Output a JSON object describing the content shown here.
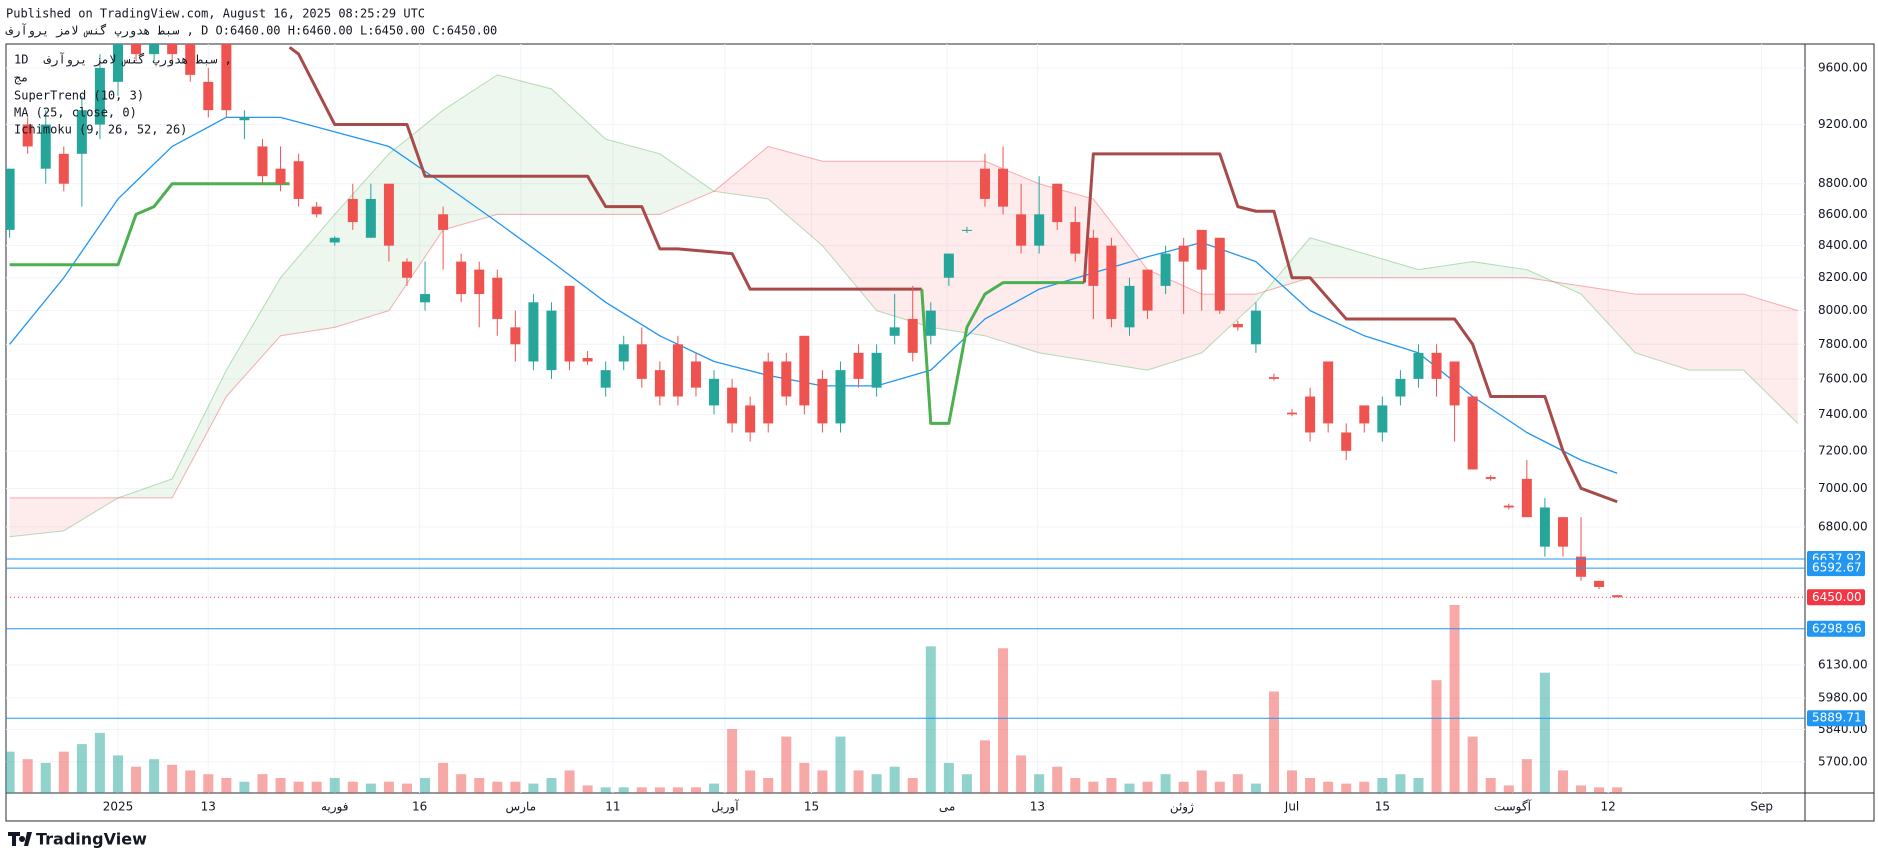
{
  "header": {
    "published": "Published on TradingView.com, August 16, 2025 08:25:29 UTC",
    "symbol_line": "سبط هدورپ گنس لامز یروآرف , D O:6460.00 H:6460.00 L:6450.00 C:6450.00"
  },
  "legend": {
    "interval": "1D",
    "symbol": "سبط هدورپ گنس لامز یروآرف ,",
    "exchange": "مج"
  },
  "footer": {
    "brand": "TradingView"
  },
  "chart_data": {
    "type": "candlestick",
    "xlim": [
      -0.2,
      99.4
    ],
    "xticks": [
      {
        "value": 6,
        "label": "2025"
      },
      {
        "value": 11,
        "label": "13"
      },
      {
        "value": 18,
        "label": "فوریه"
      },
      {
        "value": 22.7,
        "label": "16"
      },
      {
        "value": 28.3,
        "label": "مارس"
      },
      {
        "value": 33.4,
        "label": "11"
      },
      {
        "value": 39.6,
        "label": "آوریل"
      },
      {
        "value": 44.4,
        "label": "15"
      },
      {
        "value": 51.9,
        "label": "می"
      },
      {
        "value": 56.9,
        "label": "13"
      },
      {
        "value": 64.9,
        "label": "ژوئن"
      },
      {
        "value": 71,
        "label": "Jul"
      },
      {
        "value": 76,
        "label": "15"
      },
      {
        "value": 83.2,
        "label": "آگوست"
      },
      {
        "value": 88.5,
        "label": "12"
      },
      {
        "value": 97,
        "label": "Sep"
      }
    ],
    "ylim": [
      5568,
      9774
    ],
    "log": true,
    "grid": true,
    "yticks": [
      {
        "value": 9600,
        "label": "9600.00"
      },
      {
        "value": 9200,
        "label": "9200.00"
      },
      {
        "value": 8800,
        "label": "8800.00"
      },
      {
        "value": 8600,
        "label": "8600.00"
      },
      {
        "value": 8400,
        "label": "8400.00"
      },
      {
        "value": 8200,
        "label": "8200.00"
      },
      {
        "value": 8000,
        "label": "8000.00"
      },
      {
        "value": 7800,
        "label": "7800.00"
      },
      {
        "value": 7600,
        "label": "7600.00"
      },
      {
        "value": 7400,
        "label": "7400.00"
      },
      {
        "value": 7200,
        "label": "7200.00"
      },
      {
        "value": 7000,
        "label": "7000.00"
      },
      {
        "value": 6800,
        "label": "6800.00"
      },
      {
        "value": 6130,
        "label": "6130.00"
      },
      {
        "value": 5980,
        "label": "5980.00"
      },
      {
        "value": 5840,
        "label": "5840.00"
      },
      {
        "value": 5700,
        "label": "5700.00"
      }
    ],
    "up_color": "#26a69a",
    "down_color": "#ef5350",
    "ohlc": [
      [
        8500,
        8900,
        8450,
        8900
      ],
      [
        9200,
        9250,
        9000,
        9050
      ],
      [
        8900,
        9300,
        8800,
        9200
      ],
      [
        9000,
        9050,
        8750,
        8800
      ],
      [
        9000,
        9400,
        8650,
        9300
      ],
      [
        9200,
        9700,
        9100,
        9600
      ],
      [
        9500,
        9850,
        9400,
        9800
      ],
      [
        9800,
        9850,
        9650,
        9700
      ],
      [
        9700,
        9900,
        9650,
        9850
      ],
      [
        9850,
        9900,
        9650,
        9700
      ],
      [
        9800,
        9850,
        9500,
        9550
      ],
      [
        9500,
        9600,
        9250,
        9300
      ],
      [
        9800,
        9850,
        9250,
        9300
      ],
      [
        9230,
        9300,
        9100,
        9250
      ],
      [
        9050,
        9100,
        8800,
        8850
      ],
      [
        8900,
        9050,
        8750,
        8800
      ],
      [
        8950,
        9000,
        8650,
        8700
      ],
      [
        8650,
        8680,
        8580,
        8600
      ],
      [
        8420,
        8460,
        8400,
        8450
      ],
      [
        8700,
        8800,
        8500,
        8550
      ],
      [
        8450,
        8800,
        8450,
        8700
      ],
      [
        8800,
        8800,
        8300,
        8400
      ],
      [
        8300,
        8320,
        8150,
        8200
      ],
      [
        8050,
        8300,
        8000,
        8100
      ],
      [
        8600,
        8650,
        8250,
        8500
      ],
      [
        8300,
        8350,
        8050,
        8100
      ],
      [
        8250,
        8300,
        7900,
        8100
      ],
      [
        8200,
        8250,
        7850,
        7950
      ],
      [
        7900,
        8000,
        7700,
        7800
      ],
      [
        7700,
        8100,
        7650,
        8050
      ],
      [
        7650,
        8050,
        7600,
        8000
      ],
      [
        8150,
        8150,
        7650,
        7700
      ],
      [
        7720,
        7760,
        7680,
        7700
      ],
      [
        7550,
        7700,
        7500,
        7650
      ],
      [
        7700,
        7850,
        7650,
        7800
      ],
      [
        7800,
        7900,
        7550,
        7600
      ],
      [
        7650,
        7700,
        7450,
        7500
      ],
      [
        7800,
        7850,
        7450,
        7500
      ],
      [
        7700,
        7750,
        7500,
        7550
      ],
      [
        7450,
        7650,
        7400,
        7600
      ],
      [
        7550,
        7600,
        7300,
        7350
      ],
      [
        7450,
        7500,
        7250,
        7300
      ],
      [
        7700,
        7750,
        7300,
        7350
      ],
      [
        7700,
        7750,
        7450,
        7500
      ],
      [
        7850,
        7850,
        7400,
        7450
      ],
      [
        7600,
        7650,
        7300,
        7350
      ],
      [
        7350,
        7700,
        7300,
        7650
      ],
      [
        7750,
        7800,
        7550,
        7600
      ],
      [
        7550,
        7800,
        7500,
        7750
      ],
      [
        7850,
        8100,
        7800,
        7900
      ],
      [
        7950,
        8150,
        7700,
        7750
      ],
      [
        7850,
        8050,
        7800,
        8000
      ],
      [
        8200,
        8350,
        8150,
        8350
      ],
      [
        8500,
        8520,
        8480,
        8500
      ],
      [
        8900,
        9000,
        8650,
        8700
      ],
      [
        8900,
        9050,
        8600,
        8650
      ],
      [
        8600,
        8800,
        8350,
        8400
      ],
      [
        8400,
        8850,
        8350,
        8600
      ],
      [
        8800,
        8800,
        8500,
        8550
      ],
      [
        8550,
        8650,
        8300,
        8350
      ],
      [
        8450,
        8500,
        7950,
        8150
      ],
      [
        8400,
        8450,
        7900,
        7950
      ],
      [
        7900,
        8200,
        7850,
        8150
      ],
      [
        8250,
        8250,
        7950,
        8000
      ],
      [
        8150,
        8400,
        8100,
        8350
      ],
      [
        8400,
        8450,
        7980,
        8300
      ],
      [
        8500,
        8500,
        8000,
        8250
      ],
      [
        8450,
        8450,
        7980,
        8000
      ],
      [
        7920,
        7940,
        7880,
        7900
      ],
      [
        7800,
        8050,
        7750,
        8000
      ],
      [
        7610,
        7630,
        7590,
        7600
      ],
      [
        7410,
        7430,
        7390,
        7400
      ],
      [
        7500,
        7550,
        7250,
        7300
      ],
      [
        7700,
        7700,
        7300,
        7350
      ],
      [
        7300,
        7350,
        7150,
        7200
      ],
      [
        7450,
        7450,
        7300,
        7350
      ],
      [
        7300,
        7500,
        7250,
        7450
      ],
      [
        7500,
        7650,
        7450,
        7600
      ],
      [
        7600,
        7800,
        7550,
        7750
      ],
      [
        7750,
        7800,
        7500,
        7600
      ],
      [
        7700,
        7700,
        7250,
        7450
      ],
      [
        7500,
        7500,
        7100,
        7100
      ],
      [
        7060,
        7070,
        7040,
        7050
      ],
      [
        6910,
        6920,
        6890,
        6900
      ],
      [
        7050,
        7150,
        6850,
        6850
      ],
      [
        6700,
        6950,
        6650,
        6900
      ],
      [
        6850,
        6850,
        6650,
        6700
      ],
      [
        6650,
        6850,
        6530,
        6550
      ],
      [
        6530,
        6530,
        6490,
        6500
      ],
      [
        6460,
        6460,
        6450,
        6450
      ]
    ],
    "volume": [
      22,
      18,
      16,
      22,
      26,
      32,
      20,
      14,
      18,
      15,
      12,
      10,
      8,
      6,
      10,
      8,
      6,
      6,
      8,
      6,
      5,
      6,
      5,
      8,
      16,
      10,
      8,
      6,
      6,
      5,
      8,
      12,
      4,
      3,
      3,
      3,
      3,
      3,
      3,
      5,
      34,
      12,
      8,
      30,
      16,
      12,
      30,
      12,
      10,
      14,
      8,
      78,
      16,
      10,
      28,
      77,
      20,
      10,
      14,
      8,
      6,
      8,
      5,
      6,
      10,
      6,
      12,
      6,
      10,
      5,
      54,
      12,
      8,
      6,
      5,
      6,
      8,
      10,
      8,
      60,
      100,
      30,
      8,
      4,
      18,
      64,
      12,
      4,
      3,
      3
    ],
    "supertrend": {
      "name": "SuperTrend (10, 3)",
      "segments": [
        {
          "color": "#4caf50",
          "x": [
            0,
            6,
            7,
            8,
            9,
            15.5
          ],
          "values": [
            8280,
            8280,
            8600,
            8650,
            8800,
            8800
          ]
        },
        {
          "color": "#a84a4a",
          "x": [
            15.5,
            16,
            18,
            22,
            23,
            32,
            33,
            35,
            36,
            37,
            40,
            41,
            50.5
          ],
          "values": [
            9750,
            9700,
            9200,
            9200,
            8850,
            8850,
            8650,
            8650,
            8380,
            8380,
            8350,
            8130,
            8130
          ]
        },
        {
          "color": "#4caf50",
          "x": [
            50.5,
            51,
            52,
            53,
            54,
            55,
            59.5
          ],
          "values": [
            8130,
            7350,
            7350,
            7900,
            8100,
            8170,
            8170
          ]
        },
        {
          "color": "#a84a4a",
          "x": [
            59.5,
            60,
            67,
            68,
            69,
            70,
            71,
            72,
            74,
            80,
            81,
            82,
            85,
            86,
            87,
            89
          ],
          "values": [
            8170,
            9000,
            9000,
            8650,
            8620,
            8620,
            8200,
            8200,
            7950,
            7950,
            7800,
            7500,
            7500,
            7200,
            7000,
            6930
          ]
        }
      ]
    },
    "ma": {
      "name": "MA (25, close, 0)",
      "color": "#2196f3",
      "x": [
        0,
        3,
        6,
        9,
        12,
        15,
        18,
        21,
        24,
        27,
        30,
        33,
        36,
        39,
        42,
        45,
        48,
        51,
        54,
        57,
        60,
        63,
        66,
        69,
        72,
        75,
        78,
        81,
        84,
        87,
        89
      ],
      "values": [
        7800,
        8200,
        8700,
        9050,
        9250,
        9250,
        9150,
        9050,
        8800,
        8550,
        8300,
        8050,
        7850,
        7700,
        7620,
        7560,
        7560,
        7650,
        7950,
        8130,
        8230,
        8330,
        8420,
        8300,
        8000,
        7850,
        7750,
        7500,
        7300,
        7150,
        7080
      ]
    },
    "ichimoku": {
      "name": "Ichimoku (9, 26, 52, 26)",
      "up_color": "#4caf50",
      "down_color": "#f23645",
      "x": [
        0,
        3,
        6,
        9,
        12,
        15,
        18,
        21,
        24,
        27,
        30,
        33,
        36,
        39,
        42,
        45,
        48,
        51,
        54,
        57,
        60,
        63,
        66,
        69,
        72,
        75,
        78,
        81,
        84,
        87,
        90,
        93,
        96,
        99
      ],
      "span_a": [
        6750,
        6780,
        6950,
        7050,
        7650,
        8200,
        8600,
        9000,
        9300,
        9550,
        9450,
        9100,
        9000,
        8750,
        8700,
        8400,
        8000,
        7900,
        7850,
        7750,
        7700,
        7650,
        7750,
        8050,
        8450,
        8350,
        8250,
        8300,
        8250,
        8100,
        7750,
        7650,
        7650,
        7350
      ],
      "span_b": [
        6950,
        6950,
        6950,
        6950,
        7500,
        7850,
        7900,
        8000,
        8500,
        8600,
        8600,
        8600,
        8600,
        8750,
        9050,
        8950,
        8950,
        8950,
        8950,
        8800,
        8700,
        8250,
        8100,
        8100,
        8200,
        8200,
        8200,
        8200,
        8200,
        8150,
        8100,
        8100,
        8100,
        8000
      ]
    },
    "levels": [
      {
        "value": 6637.92,
        "color": "#2196f3"
      },
      {
        "value": 6592.67,
        "color": "#2196f3"
      },
      {
        "value": 6298.96,
        "color": "#2196f3"
      },
      {
        "value": 5889.71,
        "color": "#2196f3"
      }
    ],
    "last_price": {
      "value": 6450,
      "label": "6450.00",
      "color": "#f23645"
    }
  }
}
